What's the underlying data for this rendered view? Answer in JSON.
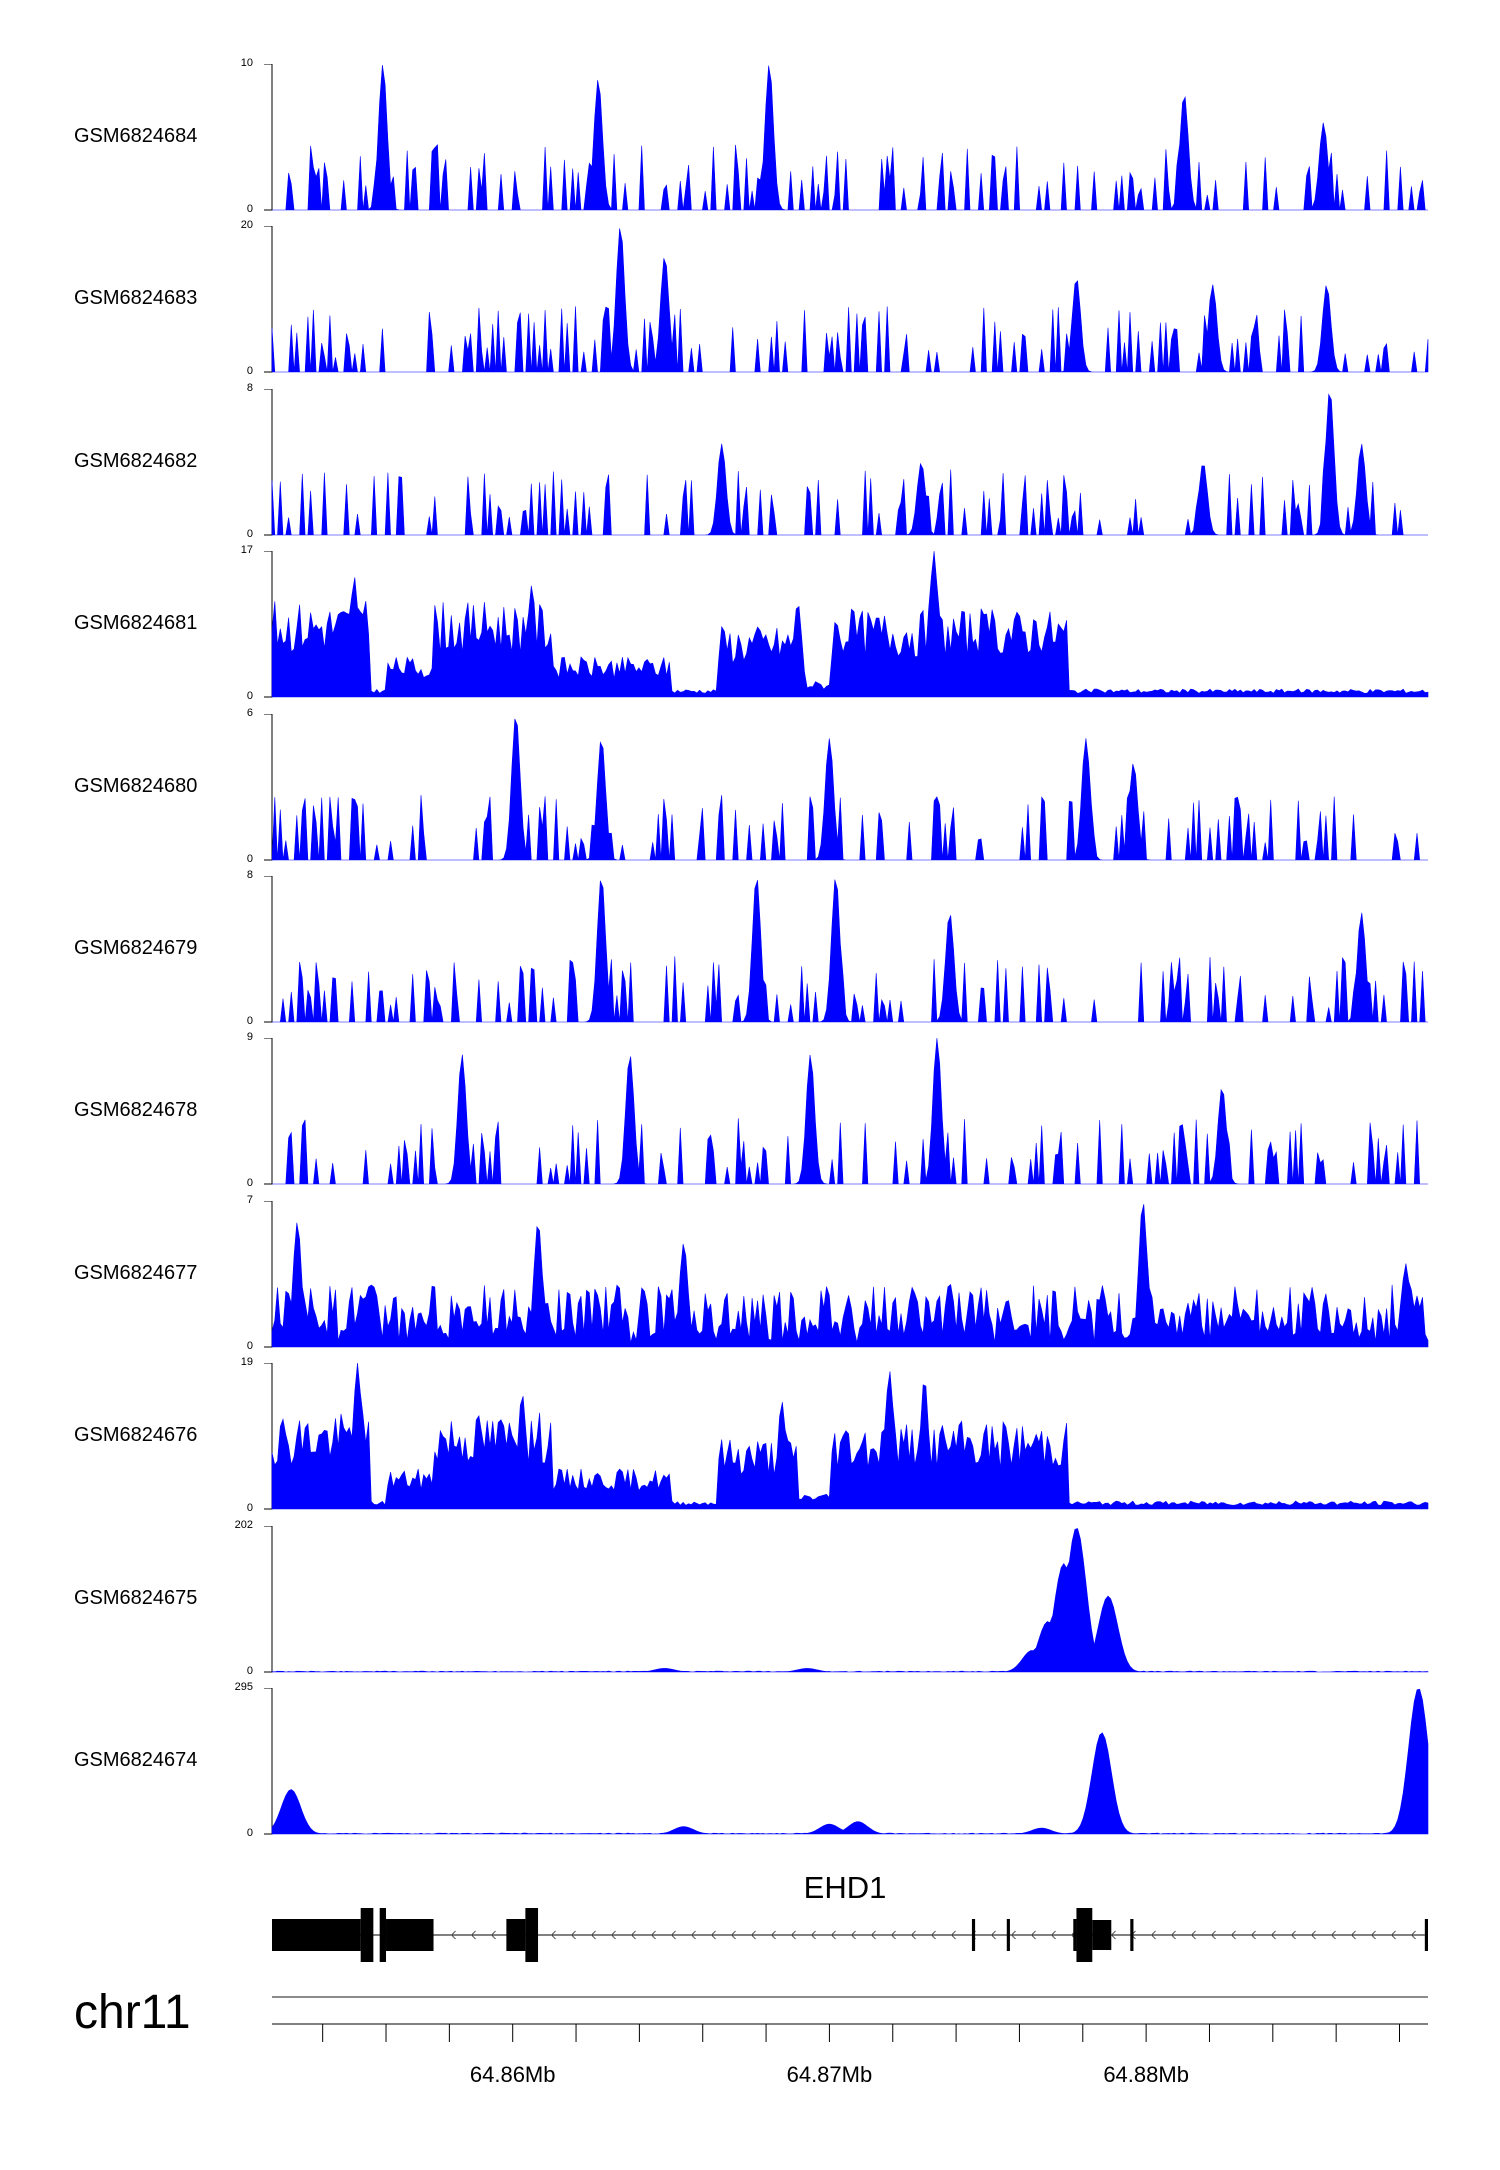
{
  "chart_data": {
    "type": "area",
    "chromosome": "chr11",
    "gene": {
      "name": "EHD1",
      "strand": "-",
      "start": 64.8524,
      "end": 64.8888,
      "exons": [
        [
          64.8524,
          64.8552,
          "coding"
        ],
        [
          64.8552,
          64.8556,
          "coding"
        ],
        [
          64.8558,
          64.856,
          "coding"
        ],
        [
          64.856,
          64.8575,
          "coding"
        ],
        [
          64.8598,
          64.8604,
          "coding"
        ],
        [
          64.8604,
          64.8608,
          "coding"
        ],
        [
          64.8745,
          64.8746,
          "utr"
        ],
        [
          64.8756,
          64.8757,
          "utr"
        ],
        [
          64.8777,
          64.8778,
          "utr"
        ],
        [
          64.8778,
          64.8783,
          "coding"
        ],
        [
          64.8783,
          64.8789,
          "coding"
        ],
        [
          64.8795,
          64.8796,
          "utr"
        ],
        [
          64.8888,
          64.8889,
          "utr"
        ]
      ]
    },
    "x_axis": {
      "range": [
        64.8524,
        64.8889
      ],
      "labeled_ticks": [
        {
          "value": 64.86,
          "label": "64.86Mb"
        },
        {
          "value": 64.87,
          "label": "64.87Mb"
        },
        {
          "value": 64.88,
          "label": "64.88Mb"
        }
      ],
      "minor_tick_step": 0.002
    },
    "series": [
      {
        "name": "GSM6824684",
        "ymax": 10,
        "ymin": 0,
        "profile": "sparse",
        "seed": 84,
        "peaks": [
          [
            64.8559,
            10
          ],
          [
            64.8627,
            9
          ],
          [
            64.8681,
            10
          ],
          [
            64.8812,
            8
          ],
          [
            64.8856,
            6
          ]
        ]
      },
      {
        "name": "GSM6824683",
        "ymax": 20,
        "ymin": 0,
        "profile": "sparse",
        "seed": 83,
        "peaks": [
          [
            64.8634,
            20
          ],
          [
            64.8648,
            16
          ],
          [
            64.8778,
            13
          ],
          [
            64.8821,
            12
          ],
          [
            64.8857,
            12
          ]
        ]
      },
      {
        "name": "GSM6824682",
        "ymax": 8,
        "ymin": 0,
        "profile": "sparse",
        "seed": 82,
        "peaks": [
          [
            64.8858,
            8
          ],
          [
            64.8868,
            5
          ],
          [
            64.8666,
            5
          ],
          [
            64.8729,
            4
          ],
          [
            64.8818,
            4
          ]
        ]
      },
      {
        "name": "GSM6824681",
        "ymax": 17,
        "ymin": 0,
        "profile": "broad",
        "seed": 81,
        "peaks": [
          [
            64.8733,
            17
          ],
          [
            64.855,
            14
          ],
          [
            64.8606,
            13
          ],
          [
            64.869,
            11
          ],
          [
            64.8765,
            9
          ]
        ]
      },
      {
        "name": "GSM6824680",
        "ymax": 6,
        "ymin": 0,
        "profile": "sparse",
        "seed": 80,
        "peaks": [
          [
            64.8601,
            6
          ],
          [
            64.8628,
            5
          ],
          [
            64.87,
            5
          ],
          [
            64.8781,
            5
          ],
          [
            64.8796,
            4
          ]
        ]
      },
      {
        "name": "GSM6824679",
        "ymax": 8,
        "ymin": 0,
        "profile": "sparse",
        "seed": 79,
        "peaks": [
          [
            64.8628,
            8
          ],
          [
            64.8677,
            8
          ],
          [
            64.8702,
            8
          ],
          [
            64.8868,
            6
          ],
          [
            64.8738,
            6
          ]
        ]
      },
      {
        "name": "GSM6824678",
        "ymax": 9,
        "ymin": 0,
        "profile": "sparse",
        "seed": 78,
        "peaks": [
          [
            64.8734,
            9
          ],
          [
            64.8584,
            8
          ],
          [
            64.8637,
            8
          ],
          [
            64.8694,
            8
          ],
          [
            64.8824,
            6
          ]
        ]
      },
      {
        "name": "GSM6824677",
        "ymax": 7,
        "ymin": 0,
        "profile": "dense",
        "seed": 77,
        "peaks": [
          [
            64.8799,
            7
          ],
          [
            64.8532,
            6
          ],
          [
            64.8608,
            6
          ],
          [
            64.8654,
            5
          ],
          [
            64.8882,
            4
          ]
        ]
      },
      {
        "name": "GSM6824676",
        "ymax": 19,
        "ymin": 0,
        "profile": "broad",
        "seed": 76,
        "peaks": [
          [
            64.8551,
            19
          ],
          [
            64.8719,
            18
          ],
          [
            64.873,
            17
          ],
          [
            64.8603,
            15
          ],
          [
            64.8685,
            14
          ]
        ]
      },
      {
        "name": "GSM6824675",
        "ymax": 202,
        "ymin": 0,
        "profile": "flat",
        "seed": 75,
        "peaks": [
          [
            64.8778,
            200
          ],
          [
            64.8774,
            150
          ],
          [
            64.8769,
            70
          ],
          [
            64.8788,
            105
          ],
          [
            64.8764,
            30
          ],
          [
            64.8648,
            5
          ],
          [
            64.8693,
            5
          ]
        ]
      },
      {
        "name": "GSM6824674",
        "ymax": 295,
        "ymin": 0,
        "profile": "flat",
        "seed": 74,
        "peaks": [
          [
            64.853,
            90
          ],
          [
            64.8654,
            15
          ],
          [
            64.87,
            20
          ],
          [
            64.8709,
            25
          ],
          [
            64.8767,
            12
          ],
          [
            64.8786,
            205
          ],
          [
            64.8886,
            295
          ]
        ]
      }
    ]
  }
}
